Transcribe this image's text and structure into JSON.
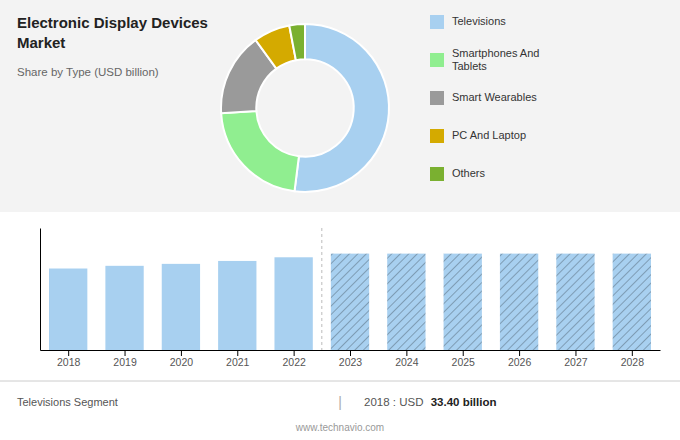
{
  "chart_data": [
    {
      "type": "pie",
      "title": "Electronic Display Devices\nMarket",
      "subtitle": "Share by Type (USD billion)",
      "categories": [
        "Televisions",
        "Smartphones And\nTablets",
        "Smart Wearables",
        "PC And Laptop",
        "Others"
      ],
      "values": [
        52,
        22,
        16,
        7,
        3
      ],
      "colors": [
        "#a8d0f0",
        "#90ee90",
        "#9a9a9a",
        "#d4aa00",
        "#7ab030"
      ],
      "legend": "right"
    },
    {
      "type": "bar",
      "x": [
        2018,
        2019,
        2020,
        2021,
        2022,
        2023,
        2024,
        2025,
        2026,
        2027,
        2028
      ],
      "xlim": [
        2017.5,
        2028.5
      ],
      "xticks": [
        2018,
        2019,
        2020,
        2021,
        2022,
        2023,
        2024,
        2025,
        2026,
        2027,
        2028
      ],
      "ylim": [
        0,
        50
      ],
      "yticks": [],
      "tick_labels": "x",
      "series": [
        {
          "color": "#a8d0f0",
          "values": [
            33.4,
            34.5,
            35.3,
            36.5,
            38.0,
            null,
            null,
            null,
            null,
            null,
            null
          ]
        },
        {
          "color": "#a8d0f0",
          "values": [
            null,
            null,
            null,
            null,
            null,
            39.5,
            39.5,
            39.5,
            39.5,
            39.5,
            39.5
          ]
        }
      ],
      "annotations": [
        "Televisions Segment",
        "|",
        "2018 : USD ",
        "33.40 billion",
        "www.technavio.com"
      ]
    }
  ]
}
